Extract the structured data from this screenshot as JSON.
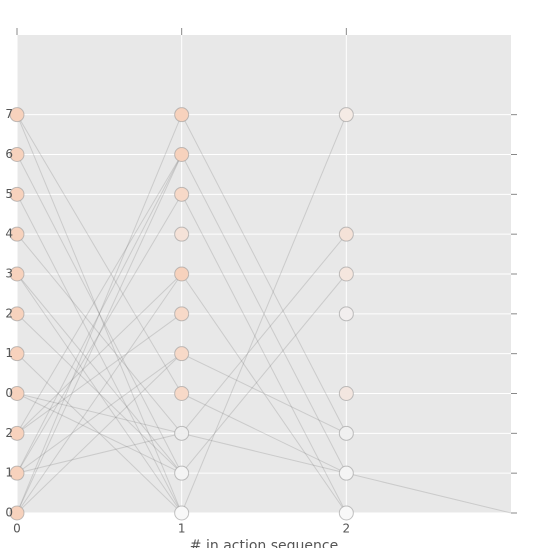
{
  "chart_data": {
    "type": "scatter",
    "x_label": "# in action sequence",
    "xlim": [
      0,
      3
    ],
    "ylim": [
      0,
      12
    ],
    "xticks": [
      0,
      1,
      2
    ],
    "yticks": [
      {
        "value": 0,
        "label": "0"
      },
      {
        "value": 1,
        "label": "1"
      },
      {
        "value": 2,
        "label": "2"
      },
      {
        "value": 3,
        "label": "0"
      },
      {
        "value": 4,
        "label": "1"
      },
      {
        "value": 5,
        "label": "2"
      },
      {
        "value": 6,
        "label": "3"
      },
      {
        "value": 7,
        "label": "4"
      },
      {
        "value": 8,
        "label": "5"
      },
      {
        "value": 9,
        "label": "6"
      },
      {
        "value": 10,
        "label": "7"
      }
    ],
    "grid": true,
    "points": {
      "x": [
        0,
        0,
        0,
        0,
        0,
        0,
        0,
        0,
        0,
        0,
        0,
        1,
        1,
        1,
        1,
        1,
        1,
        1,
        1,
        1,
        1,
        1,
        2,
        2,
        2,
        2,
        2,
        2,
        2,
        2
      ],
      "values": [
        0,
        1,
        2,
        3,
        4,
        5,
        6,
        7,
        8,
        9,
        10,
        0,
        1,
        2,
        3,
        4,
        5,
        6,
        7,
        8,
        9,
        10,
        0,
        1,
        2,
        3,
        5,
        6,
        7,
        10
      ],
      "colors": [
        "#f7d2bd",
        "#f7d2bd",
        "#f7d2bd",
        "#f7d2bd",
        "#f7d2bd",
        "#f7d2bd",
        "#f7d2bd",
        "#f7d2bd",
        "#f7d2bd",
        "#f7d2bd",
        "#f7d2bd",
        "#f8f8f8",
        "#f4f4f4",
        "#eeeeee",
        "#f7d9c8",
        "#f7d9c8",
        "#f7d9c8",
        "#f7d2bd",
        "#f5e2d8",
        "#f7d9c8",
        "#f7d2bd",
        "#f7d2bd",
        "#f8f8f8",
        "#f4f4f4",
        "#f0f0f0",
        "#f3e6e0",
        "#f2eeee",
        "#f5e6de",
        "#f5e2d8",
        "#f5ebe5"
      ]
    },
    "links": [
      {
        "x": [
          0,
          1
        ],
        "values": [
          0,
          9
        ]
      },
      {
        "x": [
          0,
          1
        ],
        "values": [
          0,
          10
        ]
      },
      {
        "x": [
          0,
          1
        ],
        "values": [
          0,
          6
        ]
      },
      {
        "x": [
          0,
          1
        ],
        "values": [
          0,
          4
        ]
      },
      {
        "x": [
          0,
          1
        ],
        "values": [
          1,
          9
        ]
      },
      {
        "x": [
          0,
          1
        ],
        "values": [
          1,
          8
        ]
      },
      {
        "x": [
          0,
          1
        ],
        "values": [
          1,
          2
        ]
      },
      {
        "x": [
          0,
          1
        ],
        "values": [
          2,
          9
        ]
      },
      {
        "x": [
          0,
          1
        ],
        "values": [
          2,
          5
        ]
      },
      {
        "x": [
          0,
          1
        ],
        "values": [
          3,
          1
        ]
      },
      {
        "x": [
          0,
          1
        ],
        "values": [
          3,
          2
        ]
      },
      {
        "x": [
          0,
          1
        ],
        "values": [
          4,
          0
        ]
      },
      {
        "x": [
          0,
          1
        ],
        "values": [
          6,
          1
        ]
      },
      {
        "x": [
          0,
          1
        ],
        "values": [
          6,
          0
        ]
      },
      {
        "x": [
          0,
          1
        ],
        "values": [
          7,
          2
        ]
      },
      {
        "x": [
          0,
          1
        ],
        "values": [
          8,
          0
        ]
      },
      {
        "x": [
          0,
          1
        ],
        "values": [
          9,
          1
        ]
      },
      {
        "x": [
          0,
          1
        ],
        "values": [
          10,
          3
        ]
      },
      {
        "x": [
          0,
          1
        ],
        "values": [
          10,
          0
        ]
      },
      {
        "x": [
          0,
          1
        ],
        "values": [
          5,
          1
        ]
      },
      {
        "x": [
          0,
          1
        ],
        "values": [
          2,
          6
        ]
      },
      {
        "x": [
          0,
          1
        ],
        "values": [
          1,
          4
        ]
      },
      {
        "x": [
          1,
          2
        ],
        "values": [
          0,
          10
        ]
      },
      {
        "x": [
          1,
          2
        ],
        "values": [
          1,
          6
        ]
      },
      {
        "x": [
          1,
          2
        ],
        "values": [
          2,
          1
        ]
      },
      {
        "x": [
          1,
          2
        ],
        "values": [
          6,
          0
        ]
      },
      {
        "x": [
          1,
          2
        ],
        "values": [
          9,
          1
        ]
      },
      {
        "x": [
          1,
          2
        ],
        "values": [
          10,
          2
        ]
      },
      {
        "x": [
          1,
          2
        ],
        "values": [
          8,
          0
        ]
      },
      {
        "x": [
          1,
          2
        ],
        "values": [
          4,
          2
        ]
      },
      {
        "x": [
          1,
          2
        ],
        "values": [
          2,
          7
        ]
      },
      {
        "x": [
          1,
          2
        ],
        "values": [
          3,
          1
        ]
      },
      {
        "x": [
          2,
          3
        ],
        "values": [
          1,
          0
        ]
      }
    ]
  }
}
